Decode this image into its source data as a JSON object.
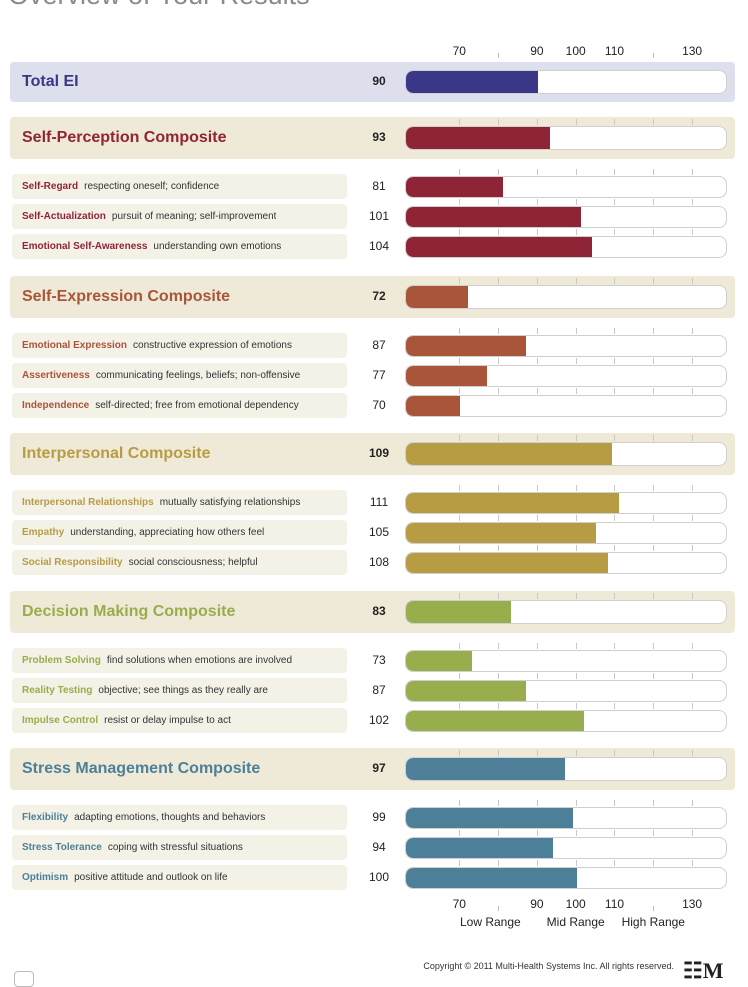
{
  "page": {
    "title": "Overview of Your Results",
    "copyright": "Copyright © 2011 Multi-Health Systems Inc. All rights reserved.",
    "logo": "M"
  },
  "colors": {
    "total": "#3a3688",
    "self_perception": "#902437",
    "self_expression": "#a8553a",
    "interpersonal": "#b89c43",
    "decision_making": "#98ad4b",
    "stress_management": "#4d8098",
    "total_bg": "#dde0ec",
    "section_bg": "#efe9d8",
    "item_bg": "#f4f1e7"
  },
  "chart_data": {
    "type": "bar",
    "orientation": "horizontal",
    "axis": {
      "min": 56,
      "max": 139,
      "ticks": [
        70,
        90,
        100,
        110,
        130
      ],
      "minor_ticks": [
        80,
        120
      ],
      "range_labels": [
        {
          "label": "Low Range",
          "center": 78
        },
        {
          "label": "Mid Range",
          "center": 100
        },
        {
          "label": "High Range",
          "center": 120
        }
      ]
    },
    "rows": [
      {
        "kind": "total",
        "name": "Total EI",
        "desc": "",
        "value": 90,
        "color": "#3a3688"
      },
      {
        "kind": "composite",
        "name": "Self-Perception Composite",
        "desc": "",
        "value": 93,
        "color": "#902437"
      },
      {
        "kind": "sub",
        "name": "Self-Regard",
        "desc": "respecting oneself; confidence",
        "value": 81,
        "color": "#902437"
      },
      {
        "kind": "sub",
        "name": "Self-Actualization",
        "desc": "pursuit of meaning; self-improvement",
        "value": 101,
        "color": "#902437"
      },
      {
        "kind": "sub",
        "name": "Emotional Self-Awareness",
        "desc": "understanding own emotions",
        "value": 104,
        "color": "#902437"
      },
      {
        "kind": "composite",
        "name": "Self-Expression Composite",
        "desc": "",
        "value": 72,
        "color": "#a8553a"
      },
      {
        "kind": "sub",
        "name": "Emotional Expression",
        "desc": "constructive expression of emotions",
        "value": 87,
        "color": "#a8553a"
      },
      {
        "kind": "sub",
        "name": "Assertiveness",
        "desc": "communicating feelings, beliefs; non-offensive",
        "value": 77,
        "color": "#a8553a"
      },
      {
        "kind": "sub",
        "name": "Independence",
        "desc": "self-directed; free from emotional dependency",
        "value": 70,
        "color": "#a8553a"
      },
      {
        "kind": "composite",
        "name": "Interpersonal Composite",
        "desc": "",
        "value": 109,
        "color": "#b89c43"
      },
      {
        "kind": "sub",
        "name": "Interpersonal Relationships",
        "desc": "mutually satisfying relationships",
        "value": 111,
        "color": "#b89c43"
      },
      {
        "kind": "sub",
        "name": "Empathy",
        "desc": "understanding, appreciating how others feel",
        "value": 105,
        "color": "#b89c43"
      },
      {
        "kind": "sub",
        "name": "Social Responsibility",
        "desc": "social consciousness; helpful",
        "value": 108,
        "color": "#b89c43"
      },
      {
        "kind": "composite",
        "name": "Decision Making Composite",
        "desc": "",
        "value": 83,
        "color": "#98ad4b"
      },
      {
        "kind": "sub",
        "name": "Problem Solving",
        "desc": "find solutions when emotions are involved",
        "value": 73,
        "color": "#98ad4b"
      },
      {
        "kind": "sub",
        "name": "Reality Testing",
        "desc": "objective; see things as they really are",
        "value": 87,
        "color": "#98ad4b"
      },
      {
        "kind": "sub",
        "name": "Impulse Control",
        "desc": "resist or delay impulse to act",
        "value": 102,
        "color": "#98ad4b"
      },
      {
        "kind": "composite",
        "name": "Stress Management Composite",
        "desc": "",
        "value": 97,
        "color": "#4d8098"
      },
      {
        "kind": "sub",
        "name": "Flexibility",
        "desc": "adapting emotions, thoughts and behaviors",
        "value": 99,
        "color": "#4d8098"
      },
      {
        "kind": "sub",
        "name": "Stress Tolerance",
        "desc": "coping with stressful situations",
        "value": 94,
        "color": "#4d8098"
      },
      {
        "kind": "sub",
        "name": "Optimism",
        "desc": "positive attitude and outlook on life",
        "value": 100,
        "color": "#4d8098"
      }
    ]
  }
}
